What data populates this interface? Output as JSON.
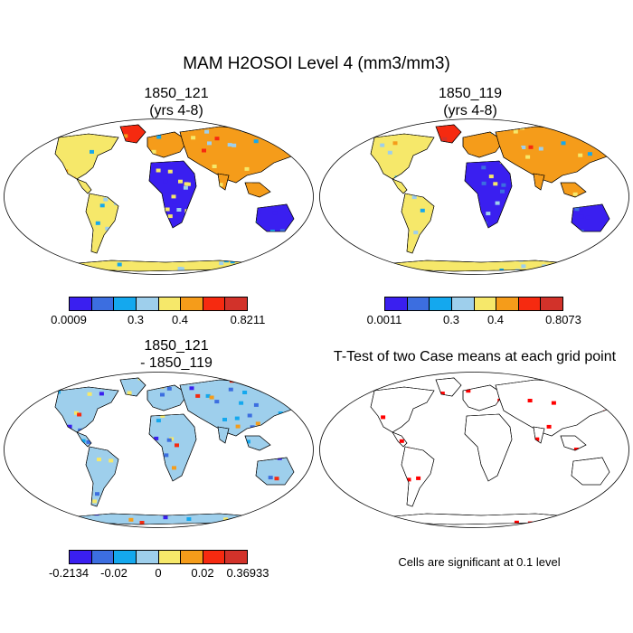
{
  "figure": {
    "title": "MAM H2OSOI Level 4 (mm3/mm3)",
    "note": "Cells are significant at 0.1 level"
  },
  "panels": {
    "p1": {
      "title_line1": "1850_121",
      "title_line2": "(yrs 4-8)"
    },
    "p2": {
      "title_line1": "1850_119",
      "title_line2": "(yrs 4-8)"
    },
    "p3": {
      "title_line1": "1850_121",
      "title_line2": "- 1850_119"
    },
    "p4": {
      "title_line1": "T-Test of two Case means at each grid point"
    }
  },
  "colorbars": {
    "cb1": {
      "colors": [
        "#3a1ff0",
        "#3c6ee0",
        "#14a8ee",
        "#9ecfec",
        "#f6e86a",
        "#f59c1a",
        "#f62a10",
        "#d2322a"
      ],
      "labels": [
        "0.0009",
        "0.3",
        "0.4",
        "0.8211"
      ]
    },
    "cb2": {
      "colors": [
        "#3a1ff0",
        "#3c6ee0",
        "#14a8ee",
        "#9ecfec",
        "#f6e86a",
        "#f59c1a",
        "#f62a10",
        "#d2322a"
      ],
      "labels": [
        "0.0011",
        "0.3",
        "0.4",
        "0.8073"
      ]
    },
    "cb3": {
      "colors": [
        "#3a1ff0",
        "#3c6ee0",
        "#14a8ee",
        "#9ecfec",
        "#f6e86a",
        "#f59c1a",
        "#f62a10",
        "#d2322a"
      ],
      "labels": [
        "-0.2134",
        "-0.02",
        "0",
        "0.02",
        "0.36933"
      ]
    }
  },
  "map_colors": {
    "wet": "#3a1ff0",
    "wet2": "#3c6ee0",
    "mid": "#14a8ee",
    "light": "#9ecfec",
    "yellow": "#f6e86a",
    "orange": "#f59c1a",
    "red": "#f62a10",
    "dark_red": "#d2322a",
    "signif": "#ff0000"
  }
}
